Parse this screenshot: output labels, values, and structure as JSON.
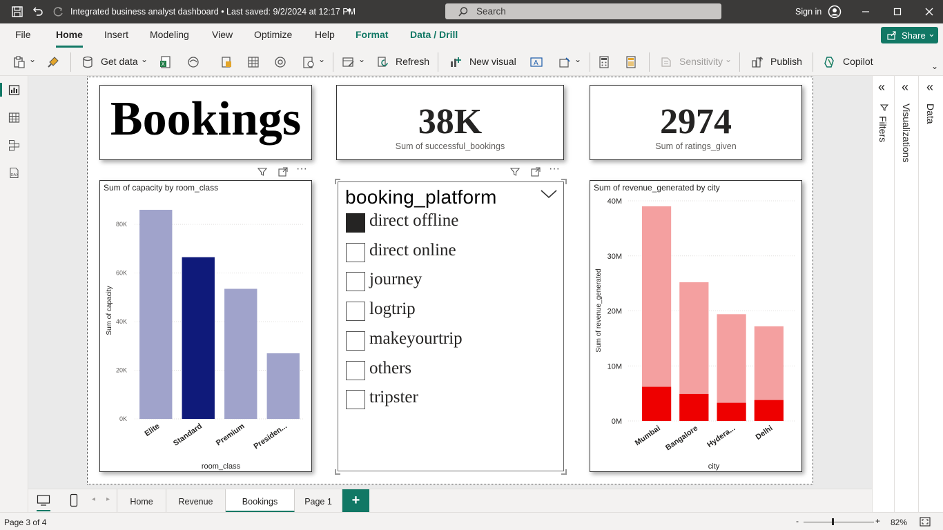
{
  "titlebar": {
    "title": "Integrated business analyst dashboard • Last saved: 9/2/2024 at 12:17 PM",
    "search_placeholder": "Search",
    "sign_in": "Sign in"
  },
  "menu": {
    "items": [
      "File",
      "Home",
      "Insert",
      "Modeling",
      "View",
      "Optimize",
      "Help",
      "Format",
      "Data / Drill"
    ],
    "active": "Home",
    "share": "Share"
  },
  "ribbon": {
    "get_data": "Get data",
    "refresh": "Refresh",
    "new_visual": "New visual",
    "sensitivity": "Sensitivity",
    "publish": "Publish",
    "copilot": "Copilot"
  },
  "cards": {
    "title": "Bookings",
    "successful_value": "38K",
    "successful_label": "Sum of successful_bookings",
    "ratings_value": "2974",
    "ratings_label": "Sum of ratings_given"
  },
  "slicer": {
    "title": "booking_platform",
    "options": [
      {
        "label": "direct offline",
        "checked": true
      },
      {
        "label": "direct online",
        "checked": false
      },
      {
        "label": "journey",
        "checked": false
      },
      {
        "label": "logtrip",
        "checked": false
      },
      {
        "label": "makeyourtrip",
        "checked": false
      },
      {
        "label": "others",
        "checked": false
      },
      {
        "label": "tripster",
        "checked": false
      }
    ]
  },
  "chart_data": [
    {
      "type": "bar",
      "title": "Sum of capacity by room_class",
      "xlabel": "room_class",
      "ylabel": "Sum of capacity",
      "categories": [
        "Elite",
        "Standard",
        "Premium",
        "Presiden..."
      ],
      "values": [
        86000,
        66500,
        53500,
        27000
      ],
      "highlighted": "Standard",
      "ylim": [
        0,
        86000
      ],
      "yticks": [
        "0K",
        "20K",
        "40K",
        "60K",
        "80K"
      ],
      "colors": {
        "bar": "#a0a3cb",
        "highlight": "#0f1a7a"
      }
    },
    {
      "type": "bar",
      "title": "Sum of revenue_generated by city",
      "xlabel": "city",
      "ylabel": "Sum of revenue_generated",
      "categories": [
        "Mumbai",
        "Bangalore",
        "Hydera...",
        "Delhi"
      ],
      "series": [
        {
          "values": [
            39000000,
            25200000,
            19400000,
            17200000
          ]
        },
        {
          "values": [
            6200000,
            4900000,
            3300000,
            3800000
          ]
        }
      ],
      "ylim": [
        0,
        40000000
      ],
      "yticks": [
        "0M",
        "10M",
        "20M",
        "30M",
        "40M"
      ],
      "colors": {
        "total": "#f4a0a0",
        "filtered": "#ee0000"
      }
    }
  ],
  "tabs": {
    "pages": [
      "Home",
      "Revenue",
      "Bookings",
      "Page 1"
    ],
    "active": "Bookings",
    "add": "+"
  },
  "status": {
    "page": "Page 3 of 4",
    "zoom": "82%",
    "minus": "-",
    "plus": "+"
  },
  "panes": {
    "filters": "Filters",
    "visualizations": "Visualizations",
    "data": "Data"
  }
}
